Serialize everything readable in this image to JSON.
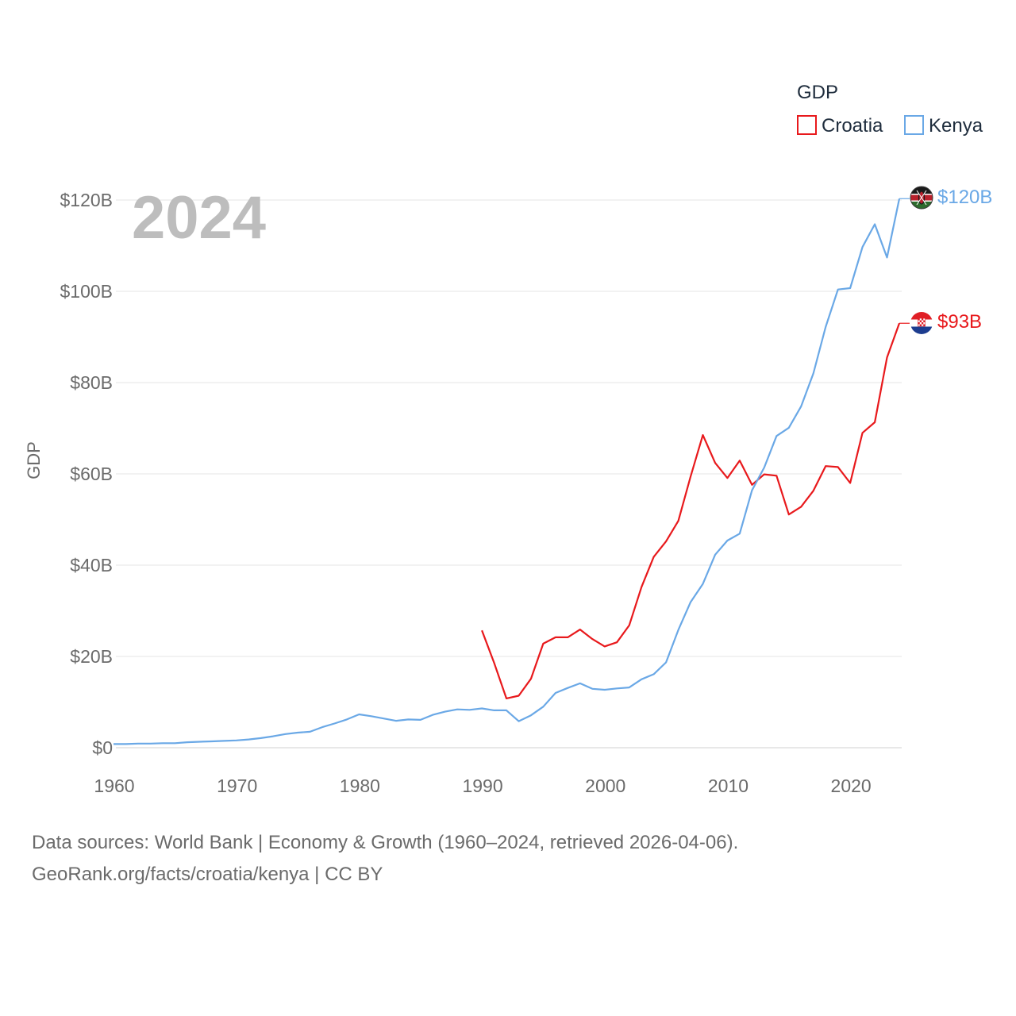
{
  "chart_data": {
    "type": "line",
    "title": "",
    "year_label": "2024",
    "ylabel": "GDP",
    "xlabel": "",
    "xlim": [
      1960,
      2024
    ],
    "ylim": [
      0,
      125
    ],
    "y_ticks": [
      {
        "value": 0,
        "label": "$0"
      },
      {
        "value": 20,
        "label": "$20B"
      },
      {
        "value": 40,
        "label": "$40B"
      },
      {
        "value": 60,
        "label": "$60B"
      },
      {
        "value": 80,
        "label": "$80B"
      },
      {
        "value": 100,
        "label": "$100B"
      },
      {
        "value": 120,
        "label": "$120B"
      }
    ],
    "x_ticks": [
      {
        "value": 1960,
        "label": "1960"
      },
      {
        "value": 1970,
        "label": "1970"
      },
      {
        "value": 1980,
        "label": "1980"
      },
      {
        "value": 1990,
        "label": "1990"
      },
      {
        "value": 2000,
        "label": "2000"
      },
      {
        "value": 2010,
        "label": "2010"
      },
      {
        "value": 2020,
        "label": "2020"
      }
    ],
    "grid": true,
    "legend": {
      "title": "GDP",
      "position": "top-right"
    },
    "series": [
      {
        "name": "Croatia",
        "color": "#e8191c",
        "end_label": "$93B",
        "points": [
          [
            1990,
            25.7
          ],
          [
            1991,
            18.6
          ],
          [
            1992,
            10.8
          ],
          [
            1993,
            11.4
          ],
          [
            1994,
            15.1
          ],
          [
            1995,
            22.8
          ],
          [
            1996,
            24.2
          ],
          [
            1997,
            24.2
          ],
          [
            1998,
            25.9
          ],
          [
            1999,
            23.8
          ],
          [
            2000,
            22.2
          ],
          [
            2001,
            23.1
          ],
          [
            2002,
            26.8
          ],
          [
            2003,
            35.2
          ],
          [
            2004,
            41.8
          ],
          [
            2005,
            45.2
          ],
          [
            2006,
            49.7
          ],
          [
            2007,
            59.4
          ],
          [
            2008,
            68.5
          ],
          [
            2009,
            62.4
          ],
          [
            2010,
            59.1
          ],
          [
            2011,
            62.9
          ],
          [
            2012,
            57.6
          ],
          [
            2013,
            59.9
          ],
          [
            2014,
            59.6
          ],
          [
            2015,
            51.1
          ],
          [
            2016,
            52.8
          ],
          [
            2017,
            56.3
          ],
          [
            2018,
            61.7
          ],
          [
            2019,
            61.5
          ],
          [
            2020,
            58.0
          ],
          [
            2021,
            69.0
          ],
          [
            2022,
            71.3
          ],
          [
            2023,
            85.5
          ],
          [
            2024,
            93.0
          ]
        ]
      },
      {
        "name": "Kenya",
        "color": "#6aa8e6",
        "end_label": "$120B",
        "points": [
          [
            1960,
            0.8
          ],
          [
            1961,
            0.8
          ],
          [
            1962,
            0.9
          ],
          [
            1963,
            0.9
          ],
          [
            1964,
            1.0
          ],
          [
            1965,
            1.0
          ],
          [
            1966,
            1.2
          ],
          [
            1967,
            1.3
          ],
          [
            1968,
            1.4
          ],
          [
            1969,
            1.5
          ],
          [
            1970,
            1.6
          ],
          [
            1971,
            1.8
          ],
          [
            1972,
            2.1
          ],
          [
            1973,
            2.5
          ],
          [
            1974,
            3.0
          ],
          [
            1975,
            3.3
          ],
          [
            1976,
            3.5
          ],
          [
            1977,
            4.5
          ],
          [
            1978,
            5.3
          ],
          [
            1979,
            6.2
          ],
          [
            1980,
            7.3
          ],
          [
            1981,
            6.9
          ],
          [
            1982,
            6.4
          ],
          [
            1983,
            5.9
          ],
          [
            1984,
            6.2
          ],
          [
            1985,
            6.1
          ],
          [
            1986,
            7.2
          ],
          [
            1987,
            7.9
          ],
          [
            1988,
            8.4
          ],
          [
            1989,
            8.3
          ],
          [
            1990,
            8.6
          ],
          [
            1991,
            8.2
          ],
          [
            1992,
            8.2
          ],
          [
            1993,
            5.8
          ],
          [
            1994,
            7.1
          ],
          [
            1995,
            9.0
          ],
          [
            1996,
            12.0
          ],
          [
            1997,
            13.1
          ],
          [
            1998,
            14.1
          ],
          [
            1999,
            12.9
          ],
          [
            2000,
            12.7
          ],
          [
            2001,
            13.0
          ],
          [
            2002,
            13.2
          ],
          [
            2003,
            15.0
          ],
          [
            2004,
            16.1
          ],
          [
            2005,
            18.7
          ],
          [
            2006,
            25.8
          ],
          [
            2007,
            31.9
          ],
          [
            2008,
            35.9
          ],
          [
            2009,
            42.3
          ],
          [
            2010,
            45.4
          ],
          [
            2011,
            46.9
          ],
          [
            2012,
            56.4
          ],
          [
            2013,
            61.4
          ],
          [
            2014,
            68.3
          ],
          [
            2015,
            70.1
          ],
          [
            2016,
            74.8
          ],
          [
            2017,
            82.0
          ],
          [
            2018,
            92.2
          ],
          [
            2019,
            100.4
          ],
          [
            2020,
            100.7
          ],
          [
            2021,
            109.7
          ],
          [
            2022,
            114.7
          ],
          [
            2023,
            107.4
          ],
          [
            2024,
            120.3
          ]
        ]
      }
    ]
  },
  "footer": {
    "line1": "Data sources: World Bank | Economy & Growth (1960–2024, retrieved 2026-04-06).",
    "line2": "GeoRank.org/facts/croatia/kenya | CC BY"
  }
}
